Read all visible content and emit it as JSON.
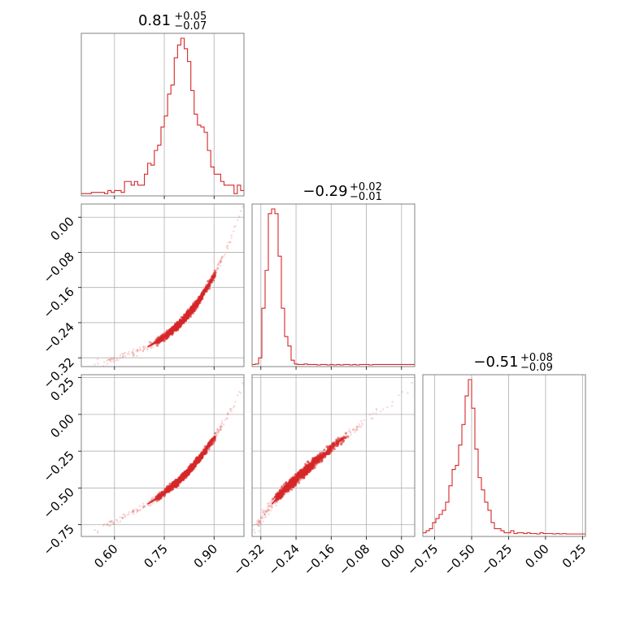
{
  "chart_data": {
    "type": "corner",
    "color": "#d62728",
    "parameters": [
      {
        "title": {
          "main": "0.81",
          "sup": "+0.05",
          "sub": "−0.07"
        },
        "range": [
          0.5,
          0.99
        ],
        "ticks": [
          0.6,
          0.75,
          0.9
        ],
        "tick_labels": [
          "0.60",
          "0.75",
          "0.90"
        ],
        "hist": {
          "bin_edges_start": 0.5,
          "bin_width": 0.01,
          "counts": [
            0.3,
            0.3,
            0.3,
            0.8,
            0.8,
            0.8,
            0.8,
            0.3,
            1.6,
            0.8,
            1.6,
            1.6,
            0.8,
            5.5,
            5.5,
            3.9,
            5.5,
            3.9,
            3.9,
            8.6,
            13.3,
            12.5,
            18.8,
            21.1,
            28.9,
            33.6,
            43,
            46.9,
            58.6,
            64.1,
            67,
            62.5,
            57,
            44.5,
            34.4,
            29.7,
            28.9,
            26.6,
            18.8,
            11.7,
            8.6,
            8.6,
            5.5,
            3.9,
            3.9,
            3.9,
            0.3,
            3.9,
            1.6,
            3.9
          ]
        }
      },
      {
        "title": {
          "main": "−0.29",
          "sup": "+0.02",
          "sub": "−0.01"
        },
        "range": [
          -0.34,
          0.03
        ],
        "ticks": [
          -0.32,
          -0.24,
          -0.16,
          -0.08,
          0.0
        ],
        "tick_labels": [
          "−0.32",
          "−0.24",
          "−0.16",
          "−0.08",
          "0.00"
        ],
        "hist": {
          "bin_edges_start": -0.34,
          "bin_width": 0.0074,
          "counts": [
            1,
            2,
            15,
            120,
            200,
            320,
            330,
            320,
            230,
            120,
            60,
            40,
            10,
            2,
            1,
            1,
            2,
            1,
            1,
            1,
            0,
            1,
            1,
            0,
            1,
            0,
            1,
            0,
            1,
            1,
            0,
            1,
            0,
            1,
            1,
            1,
            0,
            1,
            1,
            1,
            1,
            1,
            1,
            1,
            1,
            1,
            1,
            1,
            1,
            1
          ]
        }
      },
      {
        "title": {
          "main": "−0.51",
          "sup": "+0.08",
          "sub": "−0.09"
        },
        "range": [
          -0.83,
          0.27
        ],
        "ticks": [
          -0.75,
          -0.5,
          -0.25,
          0.0,
          0.25
        ],
        "tick_labels": [
          "−0.75",
          "−0.50",
          "−0.25",
          "0.00",
          "0.25"
        ],
        "hist": {
          "bin_edges_start": -0.83,
          "bin_width": 0.022,
          "counts": [
            0.5,
            1,
            1.5,
            3,
            4,
            5,
            6,
            8,
            12,
            16,
            17,
            22,
            27,
            34,
            38,
            31,
            21,
            14,
            11,
            8,
            6,
            3,
            1.5,
            1.5,
            1,
            0.5,
            0.5,
            1,
            0.3,
            0.5,
            0.5,
            0.3,
            0.5,
            0.3,
            0.3,
            0.2,
            0.5,
            0.3,
            0.3,
            0.3,
            0.2,
            0.3,
            0.2,
            0.3,
            0.2,
            0.2,
            0.2,
            0.2,
            0.2,
            0.2
          ]
        }
      }
    ],
    "correlation": {
      "note": "samples follow a tight curved ridge: y2 tied to x0 along a convex curve",
      "x0_samples_range": [
        0.54,
        0.99
      ]
    }
  }
}
